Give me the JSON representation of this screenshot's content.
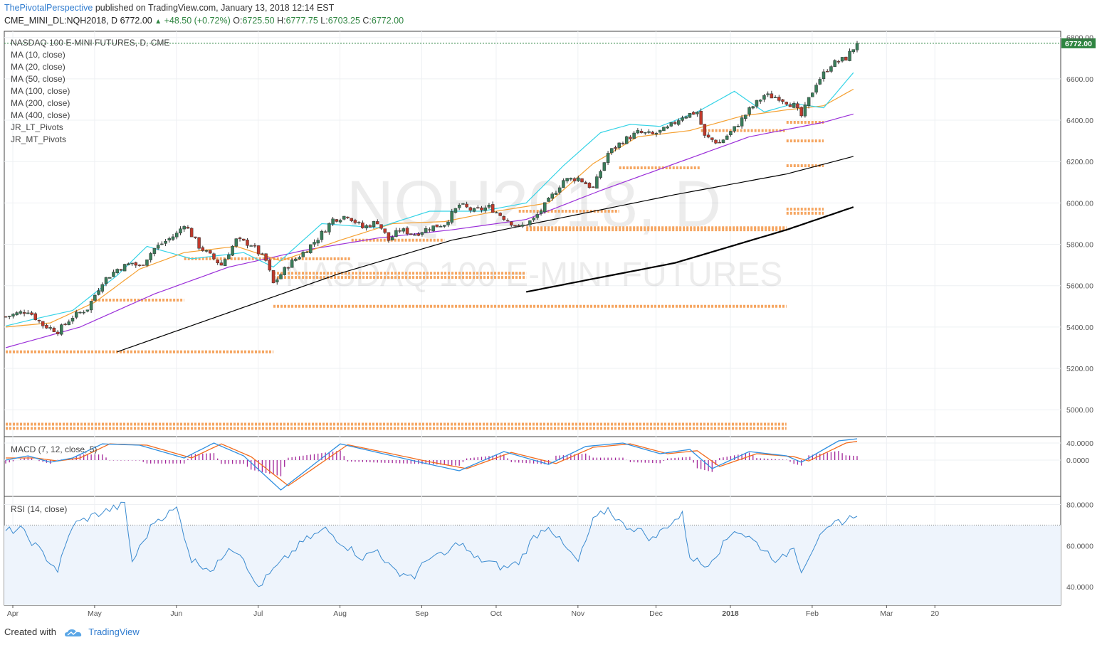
{
  "header": {
    "author": "ThePivotalPerspective",
    "published_text": "published on TradingView.com, January 13, 2018 12:14 EST",
    "symbol": "CME_MINI_DL:NQH2018, D",
    "close": "6772.00",
    "change": "+48.50 (+0.72%)",
    "open_label": "O:",
    "open": "6725.50",
    "high_label": "H:",
    "high": "6777.75",
    "low_label": "L:",
    "low": "6703.25",
    "close_label": "C:",
    "close_value": "6772.00"
  },
  "legend": [
    "NASDAQ 100 E-MINI FUTURES, D, CME",
    "MA (10, close)",
    "MA (20, close)",
    "MA (50, close)",
    "MA (100, close)",
    "MA (200, close)",
    "MA (400, close)",
    "JR_LT_Pivots",
    "JR_MT_Pivots"
  ],
  "watermark": {
    "line1": "NQH2018, D",
    "line2": "NASDAQ 100 E-MINI FUTURES"
  },
  "price_badge": "6772.00",
  "colors": {
    "up": "#3a7d5a",
    "down": "#c0392b",
    "ma10": "#34d3e6",
    "ma20": "#f5a031",
    "ma50": "#9b30d9",
    "ma100": "#000000",
    "pivots": "#f5a560",
    "macd": "#2f8fe0",
    "signal": "#f26b1d",
    "hist": "#a3289a",
    "rsi": "#3b8bd0"
  },
  "chart_data": [
    {
      "type": "candlestick",
      "title": "NASDAQ 100 E-MINI FUTURES, D, CME",
      "x_ticks": [
        "Apr",
        "May",
        "Jun",
        "Jul",
        "Aug",
        "Sep",
        "Oct",
        "Nov",
        "Dec",
        "2018",
        "Feb",
        "Mar",
        "20"
      ],
      "y_ticks": [
        "6800.00",
        "6600.00",
        "6400.00",
        "6200.00",
        "6000.00",
        "5800.00",
        "5600.00",
        "5400.00",
        "5200.00",
        "5000.00"
      ],
      "ylim": [
        4870,
        6830
      ],
      "last_close": 6772.0,
      "ma_anchors": {
        "ma10": [
          [
            0,
            5405
          ],
          [
            8,
            5440
          ],
          [
            18,
            5480
          ],
          [
            30,
            5650
          ],
          [
            38,
            5790
          ],
          [
            50,
            5730
          ],
          [
            64,
            5760
          ],
          [
            72,
            5690
          ],
          [
            85,
            5900
          ],
          [
            100,
            5880
          ],
          [
            114,
            5960
          ],
          [
            128,
            5960
          ],
          [
            140,
            6000
          ],
          [
            150,
            6180
          ],
          [
            160,
            6340
          ],
          [
            168,
            6380
          ],
          [
            176,
            6370
          ],
          [
            186,
            6440
          ],
          [
            196,
            6540
          ],
          [
            204,
            6440
          ],
          [
            212,
            6480
          ],
          [
            220,
            6460
          ],
          [
            228,
            6630
          ]
        ],
        "ma20": [
          [
            0,
            5400
          ],
          [
            12,
            5420
          ],
          [
            24,
            5520
          ],
          [
            36,
            5680
          ],
          [
            48,
            5760
          ],
          [
            62,
            5790
          ],
          [
            74,
            5720
          ],
          [
            90,
            5820
          ],
          [
            104,
            5900
          ],
          [
            118,
            5910
          ],
          [
            132,
            5960
          ],
          [
            146,
            6000
          ],
          [
            158,
            6190
          ],
          [
            170,
            6320
          ],
          [
            184,
            6350
          ],
          [
            198,
            6420
          ],
          [
            210,
            6450
          ],
          [
            220,
            6470
          ],
          [
            228,
            6550
          ]
        ],
        "ma50": [
          [
            0,
            5300
          ],
          [
            20,
            5400
          ],
          [
            40,
            5560
          ],
          [
            60,
            5690
          ],
          [
            80,
            5770
          ],
          [
            100,
            5830
          ],
          [
            120,
            5870
          ],
          [
            140,
            5920
          ],
          [
            160,
            6060
          ],
          [
            180,
            6190
          ],
          [
            200,
            6320
          ],
          [
            220,
            6390
          ],
          [
            228,
            6430
          ]
        ],
        "ma100": [
          [
            30,
            5280
          ],
          [
            60,
            5470
          ],
          [
            90,
            5660
          ],
          [
            120,
            5820
          ],
          [
            150,
            5930
          ],
          [
            180,
            6040
          ],
          [
            210,
            6140
          ],
          [
            228,
            6225
          ]
        ],
        "ma200": [
          [
            140,
            5570
          ],
          [
            180,
            5710
          ],
          [
            210,
            5870
          ],
          [
            228,
            5980
          ]
        ]
      },
      "pivot_levels": [
        {
          "price": 4910,
          "from": 0,
          "to": 210
        },
        {
          "price": 4930,
          "from": 0,
          "to": 210
        },
        {
          "price": 5280,
          "from": 0,
          "to": 72
        },
        {
          "price": 5500,
          "from": 72,
          "to": 210
        },
        {
          "price": 5530,
          "from": 23,
          "to": 48
        },
        {
          "price": 5640,
          "from": 72,
          "to": 140
        },
        {
          "price": 5660,
          "from": 72,
          "to": 140
        },
        {
          "price": 5730,
          "from": 48,
          "to": 93
        },
        {
          "price": 5820,
          "from": 93,
          "to": 118
        },
        {
          "price": 5870,
          "from": 140,
          "to": 210
        },
        {
          "price": 5880,
          "from": 140,
          "to": 210
        },
        {
          "price": 5960,
          "from": 138,
          "to": 165
        },
        {
          "price": 5950,
          "from": 210,
          "to": 220
        },
        {
          "price": 5970,
          "from": 210,
          "to": 220
        },
        {
          "price": 6170,
          "from": 165,
          "to": 187
        },
        {
          "price": 6180,
          "from": 210,
          "to": 220
        },
        {
          "price": 6300,
          "from": 210,
          "to": 220
        },
        {
          "price": 6350,
          "from": 187,
          "to": 210
        },
        {
          "price": 6390,
          "from": 210,
          "to": 220
        }
      ],
      "price_anchors": [
        [
          0,
          5450
        ],
        [
          6,
          5480
        ],
        [
          10,
          5410
        ],
        [
          14,
          5380
        ],
        [
          18,
          5450
        ],
        [
          22,
          5490
        ],
        [
          26,
          5620
        ],
        [
          30,
          5680
        ],
        [
          34,
          5710
        ],
        [
          36,
          5690
        ],
        [
          40,
          5780
        ],
        [
          46,
          5850
        ],
        [
          48,
          5900
        ],
        [
          52,
          5790
        ],
        [
          58,
          5700
        ],
        [
          62,
          5820
        ],
        [
          66,
          5800
        ],
        [
          68,
          5760
        ],
        [
          70,
          5720
        ],
        [
          72,
          5610
        ],
        [
          76,
          5700
        ],
        [
          80,
          5760
        ],
        [
          84,
          5830
        ],
        [
          88,
          5920
        ],
        [
          92,
          5940
        ],
        [
          96,
          5880
        ],
        [
          100,
          5910
        ],
        [
          103,
          5820
        ],
        [
          106,
          5870
        ],
        [
          110,
          5850
        ],
        [
          114,
          5880
        ],
        [
          118,
          5900
        ],
        [
          122,
          5990
        ],
        [
          126,
          5960
        ],
        [
          130,
          5980
        ],
        [
          134,
          5930
        ],
        [
          138,
          5880
        ],
        [
          142,
          5920
        ],
        [
          146,
          6010
        ],
        [
          150,
          6110
        ],
        [
          154,
          6120
        ],
        [
          158,
          6070
        ],
        [
          162,
          6240
        ],
        [
          166,
          6300
        ],
        [
          170,
          6340
        ],
        [
          174,
          6330
        ],
        [
          178,
          6360
        ],
        [
          182,
          6420
        ],
        [
          186,
          6440
        ],
        [
          188,
          6320
        ],
        [
          192,
          6290
        ],
        [
          196,
          6360
        ],
        [
          200,
          6450
        ],
        [
          204,
          6520
        ],
        [
          208,
          6510
        ],
        [
          212,
          6470
        ],
        [
          214,
          6420
        ],
        [
          218,
          6580
        ],
        [
          222,
          6670
        ],
        [
          226,
          6700
        ],
        [
          229,
          6772
        ]
      ],
      "n_bars": 230
    },
    {
      "type": "line",
      "title": "MACD (7, 12, close, 5)",
      "y_ticks": [
        "40.0000",
        "0.0000"
      ],
      "ylim": [
        -85,
        55
      ],
      "macd_anchors": [
        [
          0,
          0
        ],
        [
          6,
          10
        ],
        [
          12,
          -5
        ],
        [
          18,
          5
        ],
        [
          26,
          38
        ],
        [
          36,
          35
        ],
        [
          48,
          5
        ],
        [
          56,
          40
        ],
        [
          64,
          10
        ],
        [
          74,
          -70
        ],
        [
          90,
          38
        ],
        [
          100,
          18
        ],
        [
          112,
          -6
        ],
        [
          122,
          -25
        ],
        [
          134,
          20
        ],
        [
          146,
          -10
        ],
        [
          156,
          32
        ],
        [
          166,
          40
        ],
        [
          176,
          15
        ],
        [
          184,
          25
        ],
        [
          190,
          -20
        ],
        [
          200,
          20
        ],
        [
          210,
          10
        ],
        [
          214,
          -5
        ],
        [
          224,
          45
        ],
        [
          229,
          50
        ]
      ],
      "signal_anchors": [
        [
          0,
          5
        ],
        [
          8,
          5
        ],
        [
          14,
          -2
        ],
        [
          20,
          5
        ],
        [
          28,
          38
        ],
        [
          38,
          35
        ],
        [
          50,
          5
        ],
        [
          58,
          38
        ],
        [
          66,
          8
        ],
        [
          76,
          -60
        ],
        [
          92,
          36
        ],
        [
          102,
          18
        ],
        [
          114,
          -4
        ],
        [
          124,
          -20
        ],
        [
          136,
          18
        ],
        [
          148,
          -8
        ],
        [
          158,
          30
        ],
        [
          168,
          38
        ],
        [
          178,
          15
        ],
        [
          186,
          22
        ],
        [
          192,
          -15
        ],
        [
          202,
          15
        ],
        [
          212,
          8
        ],
        [
          216,
          -2
        ],
        [
          226,
          40
        ],
        [
          229,
          44
        ]
      ]
    },
    {
      "type": "line",
      "title": "RSI (14, close)",
      "y_ticks": [
        "80.0000",
        "60.0000",
        "40.0000"
      ],
      "ylim": [
        31,
        84
      ],
      "overbought": 70,
      "oversold": 30,
      "anchors": [
        [
          0,
          67
        ],
        [
          4,
          68
        ],
        [
          8,
          60
        ],
        [
          12,
          52
        ],
        [
          14,
          48
        ],
        [
          18,
          70
        ],
        [
          24,
          75
        ],
        [
          32,
          80
        ],
        [
          34,
          52
        ],
        [
          40,
          72
        ],
        [
          46,
          78
        ],
        [
          50,
          53
        ],
        [
          56,
          48
        ],
        [
          60,
          60
        ],
        [
          64,
          55
        ],
        [
          66,
          44
        ],
        [
          68,
          40
        ],
        [
          72,
          48
        ],
        [
          80,
          62
        ],
        [
          86,
          68
        ],
        [
          90,
          62
        ],
        [
          96,
          54
        ],
        [
          100,
          58
        ],
        [
          104,
          48
        ],
        [
          110,
          45
        ],
        [
          114,
          55
        ],
        [
          118,
          55
        ],
        [
          122,
          62
        ],
        [
          126,
          54
        ],
        [
          130,
          52
        ],
        [
          134,
          49
        ],
        [
          138,
          52
        ],
        [
          142,
          64
        ],
        [
          146,
          70
        ],
        [
          150,
          60
        ],
        [
          154,
          52
        ],
        [
          158,
          72
        ],
        [
          162,
          78
        ],
        [
          166,
          70
        ],
        [
          170,
          68
        ],
        [
          174,
          63
        ],
        [
          178,
          70
        ],
        [
          182,
          75
        ],
        [
          184,
          55
        ],
        [
          188,
          50
        ],
        [
          192,
          58
        ],
        [
          196,
          68
        ],
        [
          200,
          64
        ],
        [
          204,
          58
        ],
        [
          208,
          52
        ],
        [
          212,
          60
        ],
        [
          214,
          48
        ],
        [
          218,
          62
        ],
        [
          224,
          72
        ],
        [
          226,
          72
        ],
        [
          229,
          76
        ]
      ]
    }
  ]
}
